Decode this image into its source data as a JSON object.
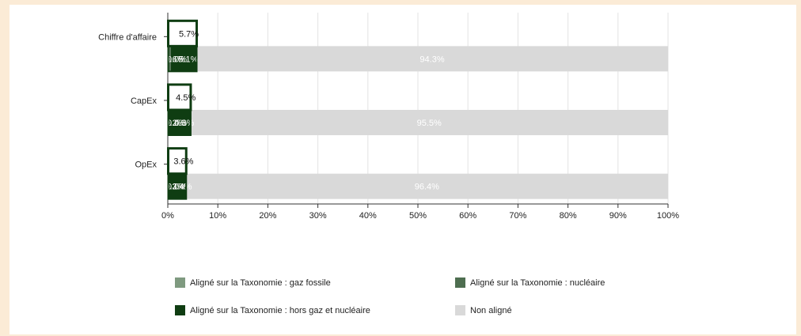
{
  "chart_data": {
    "type": "bar",
    "orientation": "horizontal",
    "stacked": true,
    "title": "",
    "xlabel": "",
    "ylabel": "",
    "categories": [
      "Chiffre d'affaire",
      "CapEx",
      "OpEx"
    ],
    "x_ticks": [
      "0%",
      "10%",
      "20%",
      "30%",
      "40%",
      "50%",
      "60%",
      "70%",
      "80%",
      "90%",
      "100%"
    ],
    "xlim": [
      0,
      100
    ],
    "grid": true,
    "legend_position": "bottom",
    "series": [
      {
        "name": "Aligné sur la Taxonomie : gaz fossile",
        "color": "#7f9a80",
        "values": [
          0.0,
          0.0,
          0.0
        ],
        "labels": [
          "0.0%",
          "0.0%",
          "0.0%"
        ]
      },
      {
        "name": "Aligné sur la Taxonomie : nucléaire",
        "color": "#4e6e50",
        "values": [
          0.6,
          0.2,
          0.2
        ],
        "labels": [
          "0.6%",
          "0.2%",
          "0.2%"
        ]
      },
      {
        "name": "Aligné sur la Taxonomie : hors gaz et nucléaire",
        "color": "#0f3d12",
        "values": [
          5.1,
          4.3,
          3.4
        ],
        "labels": [
          "5.1%",
          "4.3%",
          "3.4%"
        ]
      },
      {
        "name": "Non aligné",
        "color": "#d9d9d9",
        "values": [
          94.3,
          95.5,
          96.4
        ],
        "labels": [
          "94.3%",
          "95.5%",
          "96.4%"
        ]
      }
    ],
    "totals": {
      "values": [
        5.7,
        4.5,
        3.6
      ],
      "labels": [
        "5.7%",
        "4.5%",
        "3.6%"
      ],
      "border_color": "#0f3d12"
    }
  }
}
